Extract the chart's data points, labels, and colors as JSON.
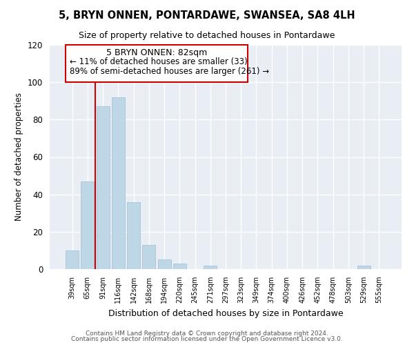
{
  "title": "5, BRYN ONNEN, PONTARDAWE, SWANSEA, SA8 4LH",
  "subtitle": "Size of property relative to detached houses in Pontardawe",
  "xlabel": "Distribution of detached houses by size in Pontardawe",
  "ylabel": "Number of detached properties",
  "bar_labels": [
    "39sqm",
    "65sqm",
    "91sqm",
    "116sqm",
    "142sqm",
    "168sqm",
    "194sqm",
    "220sqm",
    "245sqm",
    "271sqm",
    "297sqm",
    "323sqm",
    "349sqm",
    "374sqm",
    "400sqm",
    "426sqm",
    "452sqm",
    "478sqm",
    "503sqm",
    "529sqm",
    "555sqm"
  ],
  "bar_values": [
    10,
    47,
    87,
    92,
    36,
    13,
    5,
    3,
    0,
    2,
    0,
    0,
    0,
    0,
    0,
    0,
    0,
    0,
    0,
    2,
    0
  ],
  "bar_color": "#bdd7e7",
  "vline_x": 1.5,
  "vline_color": "#cc0000",
  "ylim": [
    0,
    120
  ],
  "yticks": [
    0,
    20,
    40,
    60,
    80,
    100,
    120
  ],
  "annotation_title": "5 BRYN ONNEN: 82sqm",
  "annotation_line1": "← 11% of detached houses are smaller (33)",
  "annotation_line2": "89% of semi-detached houses are larger (261) →",
  "annotation_border_color": "#cc0000",
  "footer_line1": "Contains HM Land Registry data © Crown copyright and database right 2024.",
  "footer_line2": "Contains public sector information licensed under the Open Government Licence v3.0.",
  "bg_color": "#e8eef4"
}
